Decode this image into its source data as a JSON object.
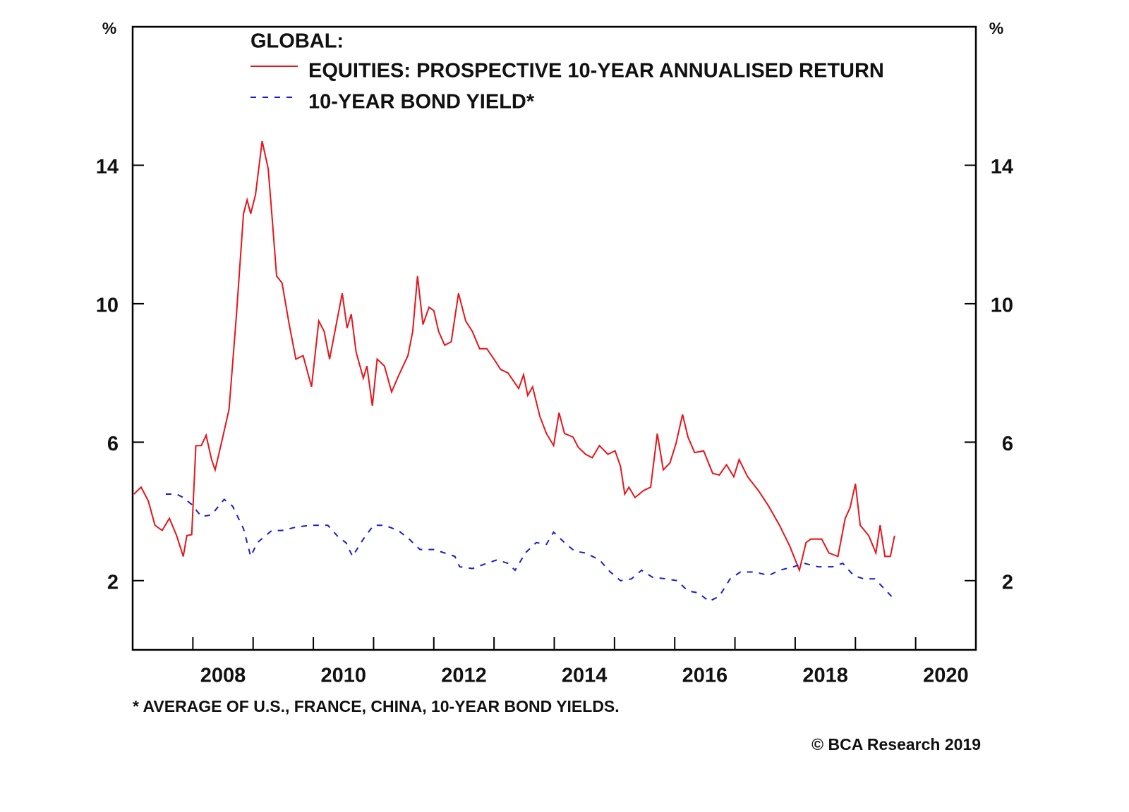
{
  "chart_data": {
    "type": "line",
    "title": "GLOBAL:",
    "y_unit": "%",
    "y2_unit": "%",
    "footnote": "* AVERAGE OF U.S., FRANCE, CHINA, 10-YEAR BOND YIELDS.",
    "source": "© BCA Research 2019",
    "xlim": [
      2007,
      2021
    ],
    "xticks": [
      2008,
      2009,
      2010,
      2011,
      2012,
      2013,
      2014,
      2015,
      2016,
      2017,
      2018,
      2019,
      2020
    ],
    "xtick_labels": [
      {
        "value": 2008.5,
        "label": "2008"
      },
      {
        "value": 2010.5,
        "label": "2010"
      },
      {
        "value": 2012.5,
        "label": "2012"
      },
      {
        "value": 2014.5,
        "label": "2014"
      },
      {
        "value": 2016.5,
        "label": "2016"
      },
      {
        "value": 2018.5,
        "label": "2018"
      },
      {
        "value": 2020.5,
        "label": "2020"
      }
    ],
    "ylim": [
      0,
      18
    ],
    "yticks": [
      2,
      6,
      10,
      14
    ],
    "y2lim": [
      0,
      18
    ],
    "y2ticks": [
      2,
      6,
      10,
      14
    ],
    "series": [
      {
        "name": "EQUITIES: PROSPECTIVE 10-YEAR ANNUALISED RETURN",
        "color": "#e8141a",
        "dash": "solid",
        "x": [
          2007.02,
          2007.14,
          2007.26,
          2007.37,
          2007.49,
          2007.61,
          2007.73,
          2007.84,
          2007.9,
          2007.98,
          2008.05,
          2008.14,
          2008.22,
          2008.31,
          2008.37,
          2008.49,
          2008.6,
          2008.72,
          2008.84,
          2008.9,
          2008.96,
          2009.04,
          2009.15,
          2009.25,
          2009.31,
          2009.39,
          2009.48,
          2009.6,
          2009.71,
          2009.83,
          2009.97,
          2010.09,
          2010.18,
          2010.27,
          2010.38,
          2010.48,
          2010.56,
          2010.63,
          2010.71,
          2010.83,
          2010.89,
          2010.98,
          2011.06,
          2011.18,
          2011.3,
          2011.41,
          2011.57,
          2011.65,
          2011.73,
          2011.82,
          2011.92,
          2012.0,
          2012.08,
          2012.18,
          2012.29,
          2012.41,
          2012.53,
          2012.64,
          2012.76,
          2012.88,
          2013.0,
          2013.11,
          2013.23,
          2013.41,
          2013.49,
          2013.56,
          2013.64,
          2013.76,
          2013.87,
          2013.99,
          2014.08,
          2014.17,
          2014.31,
          2014.4,
          2014.52,
          2014.63,
          2014.75,
          2014.89,
          2015.01,
          2015.1,
          2015.17,
          2015.24,
          2015.34,
          2015.48,
          2015.6,
          2015.71,
          2015.81,
          2015.92,
          2016.02,
          2016.13,
          2016.22,
          2016.33,
          2016.48,
          2016.63,
          2016.74,
          2016.86,
          2016.98,
          2017.07,
          2017.21,
          2017.39,
          2017.56,
          2017.74,
          2017.91,
          2018.07,
          2018.18,
          2018.26,
          2018.44,
          2018.56,
          2018.71,
          2018.83,
          2018.91,
          2019.0,
          2019.08,
          2019.22,
          2019.34,
          2019.41,
          2019.49,
          2019.58,
          2019.65
        ],
        "values": [
          4.5,
          4.7,
          4.3,
          3.6,
          3.45,
          3.8,
          3.3,
          2.7,
          3.3,
          3.33,
          5.9,
          5.9,
          6.2,
          5.5,
          5.2,
          6.1,
          6.95,
          9.6,
          12.6,
          13.0,
          12.6,
          13.15,
          14.7,
          13.9,
          12.6,
          10.8,
          10.6,
          9.4,
          8.4,
          8.5,
          7.6,
          9.5,
          9.2,
          8.4,
          9.4,
          10.3,
          9.3,
          9.7,
          8.6,
          7.85,
          8.2,
          7.05,
          8.4,
          8.2,
          7.45,
          7.9,
          8.5,
          9.2,
          10.8,
          9.4,
          9.9,
          9.8,
          9.2,
          8.8,
          8.9,
          10.3,
          9.5,
          9.2,
          8.7,
          8.7,
          8.4,
          8.1,
          8.0,
          7.55,
          7.95,
          7.35,
          7.6,
          6.75,
          6.25,
          5.9,
          6.85,
          6.25,
          6.15,
          5.85,
          5.65,
          5.55,
          5.9,
          5.65,
          5.75,
          5.3,
          4.5,
          4.7,
          4.4,
          4.6,
          4.7,
          6.25,
          5.2,
          5.4,
          5.95,
          6.8,
          6.15,
          5.7,
          5.75,
          5.1,
          5.05,
          5.35,
          5.0,
          5.5,
          5.0,
          4.6,
          4.15,
          3.6,
          3.0,
          2.3,
          3.1,
          3.2,
          3.2,
          2.8,
          2.7,
          3.8,
          4.1,
          4.8,
          3.6,
          3.3,
          2.8,
          3.6,
          2.7,
          2.7,
          3.3
        ]
      },
      {
        "name": "10-YEAR BOND YIELD*",
        "color": "#1a1ad6",
        "dash": "dashed",
        "x": [
          2007.55,
          2007.73,
          2007.84,
          2007.98,
          2008.14,
          2008.31,
          2008.52,
          2008.66,
          2008.84,
          2008.96,
          2009.07,
          2009.31,
          2009.48,
          2009.72,
          2009.95,
          2010.24,
          2010.42,
          2010.54,
          2010.65,
          2010.83,
          2011.0,
          2011.18,
          2011.41,
          2011.59,
          2011.77,
          2012.0,
          2012.18,
          2012.35,
          2012.43,
          2012.64,
          2012.88,
          2013.05,
          2013.23,
          2013.35,
          2013.52,
          2013.7,
          2013.87,
          2013.99,
          2014.17,
          2014.34,
          2014.52,
          2014.75,
          2014.93,
          2015.1,
          2015.28,
          2015.45,
          2015.63,
          2015.86,
          2016.04,
          2016.22,
          2016.39,
          2016.57,
          2016.74,
          2016.92,
          2017.09,
          2017.33,
          2017.56,
          2017.74,
          2017.97,
          2018.15,
          2018.38,
          2018.62,
          2018.79,
          2018.97,
          2019.14,
          2019.32,
          2019.49,
          2019.65
        ],
        "values": [
          4.5,
          4.5,
          4.4,
          4.2,
          3.85,
          3.9,
          4.35,
          4.15,
          3.5,
          2.7,
          3.1,
          3.45,
          3.45,
          3.55,
          3.6,
          3.6,
          3.25,
          3.1,
          2.7,
          3.2,
          3.6,
          3.6,
          3.45,
          3.2,
          2.9,
          2.9,
          2.8,
          2.7,
          2.4,
          2.35,
          2.5,
          2.6,
          2.5,
          2.3,
          2.8,
          3.1,
          3.05,
          3.4,
          3.1,
          2.85,
          2.8,
          2.6,
          2.25,
          2.0,
          2.05,
          2.3,
          2.1,
          2.05,
          2.0,
          1.7,
          1.65,
          1.4,
          1.55,
          2.05,
          2.25,
          2.25,
          2.15,
          2.3,
          2.4,
          2.5,
          2.4,
          2.4,
          2.5,
          2.15,
          2.05,
          2.05,
          1.75,
          1.45
        ]
      }
    ]
  }
}
